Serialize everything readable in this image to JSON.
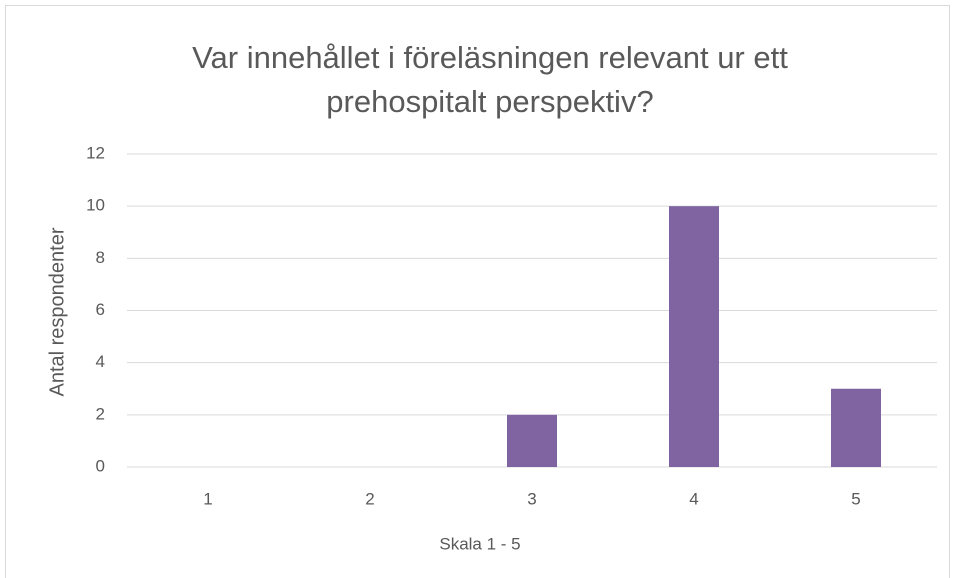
{
  "chart_data": {
    "type": "bar",
    "title": "Var innehållet i föreläsningen relevant ur ett prehospitalt perspektiv?",
    "x_label": "Skala 1 - 5",
    "y_label": "Antal respondenter",
    "categories": [
      "1",
      "2",
      "3",
      "4",
      "5"
    ],
    "values": [
      0,
      0,
      2,
      10,
      3
    ],
    "color": "#8064a2",
    "ylim": [
      0,
      12
    ],
    "yticks": [
      0,
      2,
      4,
      6,
      8,
      10,
      12
    ],
    "grid": true
  }
}
